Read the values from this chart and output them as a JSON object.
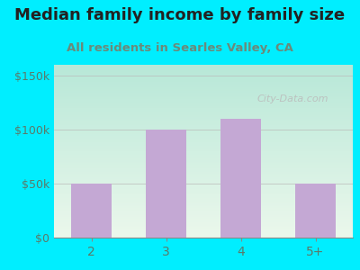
{
  "title": "Median family income by family size",
  "subtitle": "All residents in Searles Valley, CA",
  "categories": [
    "2",
    "3",
    "4",
    "5+"
  ],
  "values": [
    50000,
    100000,
    110000,
    50000
  ],
  "bar_color": "#c4a8d4",
  "title_fontsize": 13,
  "subtitle_fontsize": 9.5,
  "subtitle_color": "#6a8a7a",
  "title_color": "#222222",
  "yticks": [
    0,
    50000,
    100000,
    150000
  ],
  "ytick_labels": [
    "$0",
    "$50k",
    "$100k",
    "$150k"
  ],
  "ylim": [
    0,
    160000
  ],
  "bg_outer": "#00eeff",
  "bg_grad_top": "#b8e8d8",
  "bg_grad_bottom": "#e8f5e8",
  "watermark": "City-Data.com",
  "tick_color": "#5a7a6a",
  "grid_color": "#bbbbbb"
}
